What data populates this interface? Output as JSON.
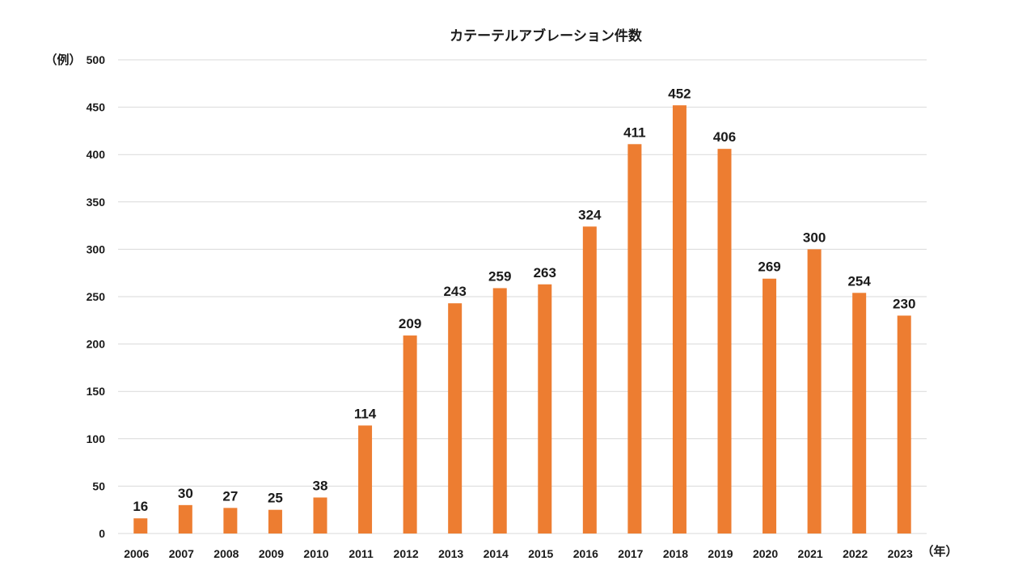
{
  "chart_data": {
    "type": "bar",
    "title": "カテーテルアブレーション件数",
    "ylabel": "（例）",
    "xlabel": "（年）",
    "ylim": [
      0,
      500
    ],
    "yticks": [
      0,
      50,
      100,
      150,
      200,
      250,
      300,
      350,
      400,
      450,
      500
    ],
    "grid": true,
    "categories": [
      "2006",
      "2007",
      "2008",
      "2009",
      "2010",
      "2011",
      "2012",
      "2013",
      "2014",
      "2015",
      "2016",
      "2017",
      "2018",
      "2019",
      "2020",
      "2021",
      "2022",
      "2023"
    ],
    "values": [
      16,
      30,
      27,
      25,
      38,
      114,
      209,
      243,
      259,
      263,
      324,
      411,
      452,
      406,
      269,
      300,
      254,
      230
    ],
    "colors": {
      "bar": "#ED7D31",
      "grid": "#D9D9D9",
      "text": "#1a1a1a"
    }
  }
}
